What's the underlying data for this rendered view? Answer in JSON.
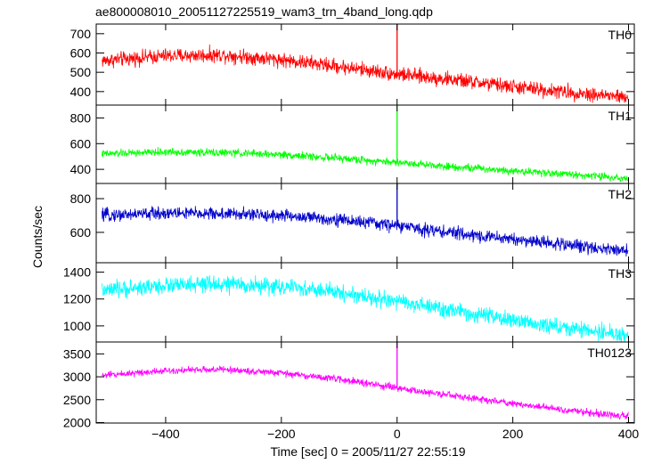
{
  "title": "ae800008010_20051127225519_wam3_trn_4band_long.qdp",
  "ylabel": "Counts/sec",
  "xlabel": "Time [sec] 0 = 2005/11/27 22:55:19",
  "chart_data": [
    {
      "type": "line",
      "name": "TH0",
      "color": "#ff0000",
      "xlim": [
        -520,
        410
      ],
      "ylim": [
        330,
        750
      ],
      "yticks": [
        400,
        500,
        600,
        700
      ],
      "xticks": [
        -400,
        -200,
        0,
        200,
        400
      ],
      "trend": {
        "x": [
          -510,
          -400,
          -300,
          -200,
          -100,
          0,
          100,
          200,
          300,
          400
        ],
        "y": [
          560,
          585,
          590,
          565,
          530,
          490,
          460,
          425,
          395,
          370
        ]
      },
      "noise": 28,
      "spike": {
        "x": 0,
        "y": 750
      }
    },
    {
      "type": "line",
      "name": "TH1",
      "color": "#00ff00",
      "xlim": [
        -520,
        410
      ],
      "ylim": [
        290,
        900
      ],
      "yticks": [
        400,
        600,
        800
      ],
      "xticks": [
        -400,
        -200,
        0,
        200,
        400
      ],
      "trend": {
        "x": [
          -510,
          -400,
          -300,
          -200,
          -100,
          0,
          100,
          200,
          300,
          400
        ],
        "y": [
          520,
          535,
          530,
          515,
          485,
          455,
          420,
          390,
          360,
          330
        ]
      },
      "noise": 22,
      "spike": {
        "x": 0,
        "y": 900
      }
    },
    {
      "type": "line",
      "name": "TH2",
      "color": "#0000cc",
      "xlim": [
        -520,
        410
      ],
      "ylim": [
        420,
        890
      ],
      "yticks": [
        600,
        800
      ],
      "xticks": [
        -400,
        -200,
        0,
        200,
        400
      ],
      "trend": {
        "x": [
          -510,
          -400,
          -300,
          -200,
          -100,
          0,
          100,
          200,
          300,
          400
        ],
        "y": [
          700,
          715,
          710,
          700,
          675,
          640,
          595,
          560,
          525,
          490
        ]
      },
      "noise": 28,
      "spike": {
        "x": 0,
        "y": 890
      }
    },
    {
      "type": "line",
      "name": "TH3",
      "color": "#00ffff",
      "xlim": [
        -520,
        410
      ],
      "ylim": [
        880,
        1470
      ],
      "yticks": [
        1000,
        1200,
        1400
      ],
      "xticks": [
        -400,
        -200,
        0,
        200,
        400
      ],
      "trend": {
        "x": [
          -510,
          -400,
          -300,
          -200,
          -100,
          0,
          100,
          200,
          300,
          400
        ],
        "y": [
          1260,
          1300,
          1310,
          1290,
          1250,
          1180,
          1110,
          1040,
          980,
          930
        ]
      },
      "noise": 45,
      "spike": null
    },
    {
      "type": "line",
      "name": "TH0123",
      "color": "#ff00ff",
      "xlim": [
        -520,
        410
      ],
      "ylim": [
        1990,
        3760
      ],
      "yticks": [
        2000,
        2500,
        3000,
        3500
      ],
      "xticks": [
        -400,
        -200,
        0,
        200,
        400
      ],
      "trend": {
        "x": [
          -510,
          -400,
          -300,
          -200,
          -100,
          0,
          100,
          200,
          300,
          400
        ],
        "y": [
          3030,
          3140,
          3160,
          3080,
          2950,
          2750,
          2580,
          2420,
          2260,
          2130
        ]
      },
      "noise": 55,
      "spike": {
        "x": 0,
        "y": 3760
      }
    }
  ]
}
